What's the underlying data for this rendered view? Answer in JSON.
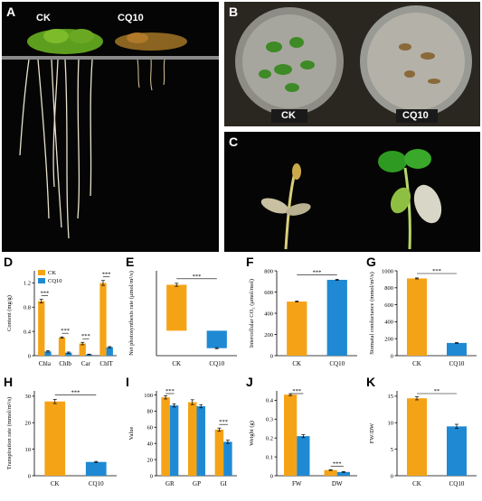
{
  "panels": {
    "A": {
      "letter": "A",
      "labels": [
        "CK",
        "CQ10"
      ]
    },
    "B": {
      "letter": "B",
      "labels": [
        "CK",
        "CQ10"
      ]
    },
    "C": {
      "letter": "C"
    },
    "D": {
      "letter": "D"
    },
    "E": {
      "letter": "E"
    },
    "F": {
      "letter": "F"
    },
    "G": {
      "letter": "G"
    },
    "H": {
      "letter": "H"
    },
    "I": {
      "letter": "I"
    },
    "J": {
      "letter": "J"
    },
    "K": {
      "letter": "K"
    }
  },
  "colors": {
    "CK": "#f5a316",
    "CQ10": "#1f8ad3"
  },
  "chart_data": [
    {
      "id": "D",
      "type": "bar",
      "categories": [
        "Chla",
        "Chlb",
        "Car",
        "ChlT"
      ],
      "series": [
        {
          "name": "CK",
          "values": [
            0.9,
            0.3,
            0.2,
            1.2
          ],
          "errors": [
            0.03,
            0.01,
            0.02,
            0.04
          ]
        },
        {
          "name": "CQ10",
          "values": [
            0.07,
            0.05,
            0.02,
            0.14
          ],
          "errors": [
            0.01,
            0.01,
            0.005,
            0.01
          ]
        }
      ],
      "ylabel": "Content (mg/g)",
      "ylim": [
        0,
        1.4
      ],
      "yticks": [
        0,
        0.4,
        0.8,
        1.2
      ],
      "ytick_labels": [
        "0",
        "0.4",
        "0.8",
        "1.2"
      ],
      "significance": [
        "***",
        "***",
        "***",
        "***"
      ],
      "legend": "top-left"
    },
    {
      "id": "E",
      "type": "bar",
      "categories": [
        "CK",
        "CQ10"
      ],
      "series": [
        {
          "values": [
            9.2,
            -3.5
          ],
          "errors": [
            0.3,
            0.1
          ]
        }
      ],
      "ylabel": "Net photosynthesis rate (μmol/m²/s)",
      "ylim": [
        -5,
        12
      ],
      "yticks": [],
      "significance": [
        "***"
      ],
      "floating": true
    },
    {
      "id": "F",
      "type": "bar",
      "categories": [
        "CK",
        "CQ10"
      ],
      "series": [
        {
          "values": [
            510,
            715
          ],
          "errors": [
            5,
            5
          ]
        }
      ],
      "ylabel": "Intercellular CO₂ (μmol/mol)",
      "ylim": [
        0,
        800
      ],
      "yticks": [
        0,
        200,
        400,
        600,
        800
      ],
      "ytick_labels": [
        "0",
        "200",
        "400",
        "600",
        "800"
      ],
      "significance": [
        "***"
      ]
    },
    {
      "id": "G",
      "type": "bar",
      "categories": [
        "CK",
        "CQ10"
      ],
      "series": [
        {
          "values": [
            910,
            150
          ],
          "errors": [
            6,
            5
          ]
        }
      ],
      "ylabel": "Stomatal conductance (mmol/m²/s)",
      "ylim": [
        0,
        1000
      ],
      "yticks": [
        0,
        200,
        400,
        600,
        800,
        1000
      ],
      "ytick_labels": [
        "0",
        "200",
        "400",
        "600",
        "800",
        "1000"
      ],
      "significance": [
        "***"
      ]
    },
    {
      "id": "H",
      "type": "bar",
      "categories": [
        "CK",
        "CQ10"
      ],
      "series": [
        {
          "values": [
            28,
            5.2
          ],
          "errors": [
            0.8,
            0.2
          ]
        }
      ],
      "ylabel": "Transpiration rate (mmol/m²/s)",
      "ylim": [
        0,
        32
      ],
      "yticks": [
        0,
        10,
        20,
        30
      ],
      "ytick_labels": [
        "0",
        "10",
        "20",
        "30"
      ],
      "significance": [
        "***"
      ]
    },
    {
      "id": "I",
      "type": "bar",
      "categories": [
        "GR",
        "GP",
        "GI"
      ],
      "series": [
        {
          "name": "CK",
          "values": [
            97,
            91,
            57
          ],
          "errors": [
            2,
            3,
            2
          ]
        },
        {
          "name": "CQ10",
          "values": [
            87,
            86,
            42
          ],
          "errors": [
            2,
            2,
            2
          ]
        }
      ],
      "ylabel": "Value",
      "ylim": [
        0,
        105
      ],
      "yticks": [
        0,
        20,
        40,
        60,
        80,
        100
      ],
      "ytick_labels": [
        "0",
        "20",
        "40",
        "60",
        "80",
        "100"
      ],
      "significance": [
        "***",
        "",
        "***"
      ]
    },
    {
      "id": "J",
      "type": "bar",
      "categories": [
        "FW",
        "DW"
      ],
      "series": [
        {
          "name": "CK",
          "values": [
            0.43,
            0.03
          ],
          "errors": [
            0.005,
            0.002
          ]
        },
        {
          "name": "CQ10",
          "values": [
            0.21,
            0.02
          ],
          "errors": [
            0.008,
            0.002
          ]
        }
      ],
      "ylabel": "Weight (g)",
      "ylim": [
        0,
        0.45
      ],
      "yticks": [
        0,
        0.1,
        0.2,
        0.3,
        0.4
      ],
      "ytick_labels": [
        "0",
        "0.1",
        "0.2",
        "0.3",
        "0.4"
      ],
      "significance": [
        "***",
        "***"
      ]
    },
    {
      "id": "K",
      "type": "bar",
      "categories": [
        "CK",
        "CQ10"
      ],
      "series": [
        {
          "values": [
            14.6,
            9.3
          ],
          "errors": [
            0.3,
            0.4
          ]
        }
      ],
      "ylabel": "FW/DW",
      "ylim": [
        0,
        16
      ],
      "yticks": [
        0,
        5,
        10,
        15
      ],
      "ytick_labels": [
        "0",
        "5",
        "10",
        "15"
      ],
      "significance": [
        "**"
      ]
    }
  ]
}
